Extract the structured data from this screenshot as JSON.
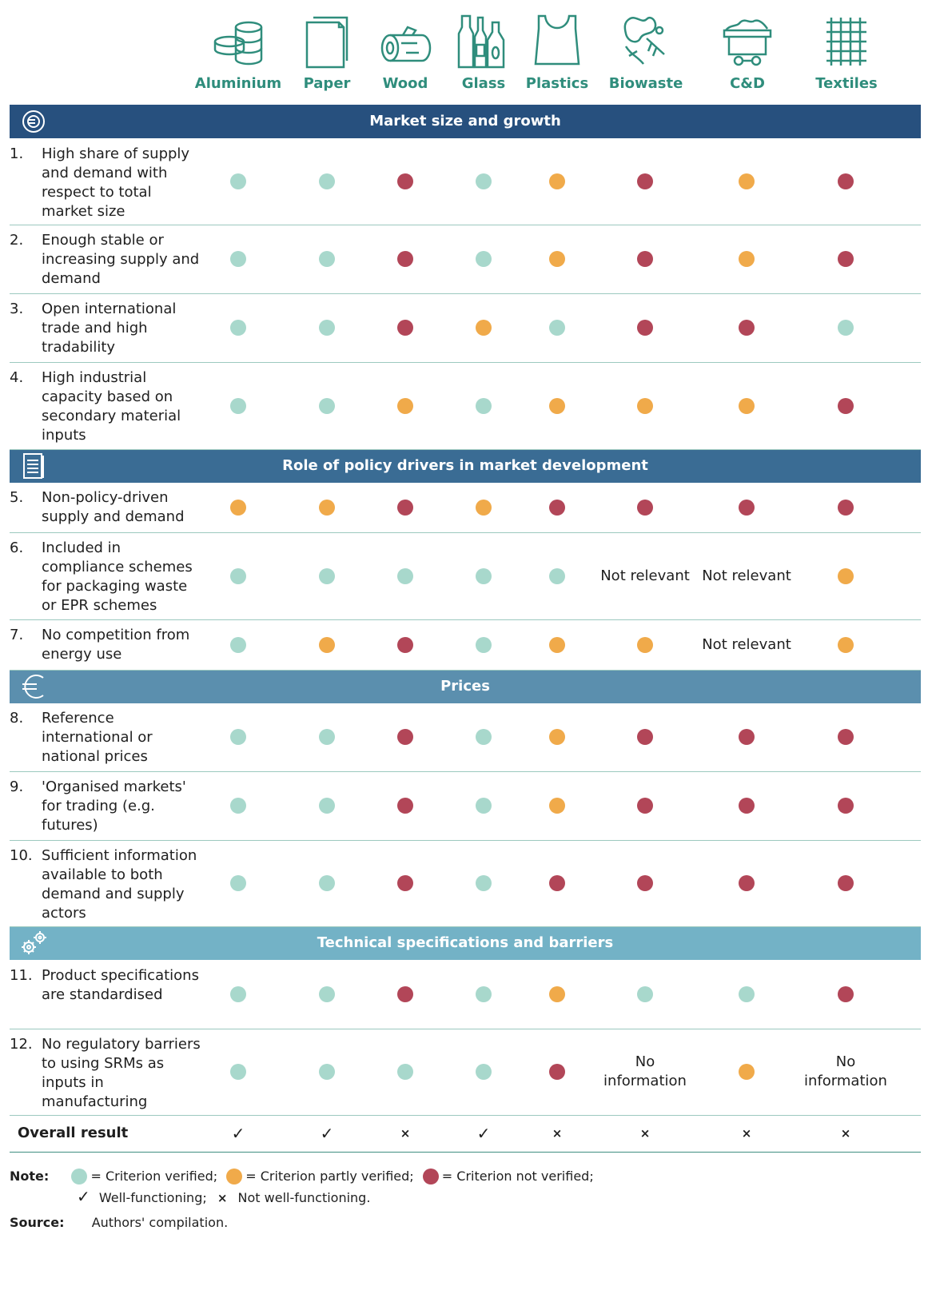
{
  "colors": {
    "verified": "#a8d8cc",
    "partly": "#f0aa4a",
    "not_verified": "#b24658",
    "section1": "#27507e",
    "section2": "#3a6c94",
    "section3": "#5b8fae",
    "section4": "#73b2c6"
  },
  "materials": [
    {
      "label": "Aluminium",
      "icon": "aluminium-cans-icon"
    },
    {
      "label": "Paper",
      "icon": "paper-sheets-icon"
    },
    {
      "label": "Wood",
      "icon": "wood-log-icon"
    },
    {
      "label": "Glass",
      "icon": "glass-bottles-icon"
    },
    {
      "label": "Plastics",
      "icon": "plastic-bag-icon"
    },
    {
      "label": "Biowaste",
      "icon": "biowaste-icon"
    },
    {
      "label": "C&D",
      "icon": "mine-cart-icon"
    },
    {
      "label": "Textiles",
      "icon": "woven-textile-icon"
    }
  ],
  "sections": [
    {
      "title": "Market size and growth",
      "icon": "euro-leaf-cycle-icon"
    },
    {
      "title": "Role of policy drivers in market development",
      "icon": "document-policy-icon"
    },
    {
      "title": "Prices",
      "icon": "euro-icon"
    },
    {
      "title": "Technical specifications and barriers",
      "icon": "gears-icon"
    }
  ],
  "criteria": [
    {
      "num": "1.",
      "text": "High share of supply and demand with respect to total market size",
      "values": [
        "v",
        "v",
        "n",
        "v",
        "p",
        "n",
        "p",
        "n"
      ]
    },
    {
      "num": "2.",
      "text": "Enough stable or increasing supply and demand",
      "values": [
        "v",
        "v",
        "n",
        "v",
        "p",
        "n",
        "p",
        "n"
      ]
    },
    {
      "num": "3.",
      "text": "Open international trade and high tradability",
      "values": [
        "v",
        "v",
        "n",
        "p",
        "v",
        "n",
        "n",
        "v"
      ]
    },
    {
      "num": "4.",
      "text": "High industrial capacity based on secondary material inputs",
      "values": [
        "v",
        "v",
        "p",
        "v",
        "p",
        "p",
        "p",
        "n"
      ]
    },
    {
      "num": "5.",
      "text": "Non-policy-driven supply and demand",
      "values": [
        "p",
        "p",
        "n",
        "p",
        "n",
        "n",
        "n",
        "n"
      ]
    },
    {
      "num": "6.",
      "text": "Included in compliance schemes for packaging waste or EPR schemes",
      "values": [
        "v",
        "v",
        "v",
        "v",
        "v",
        "Not relevant",
        "Not relevant",
        "p"
      ]
    },
    {
      "num": "7.",
      "text": "No competition from energy use",
      "values": [
        "v",
        "p",
        "n",
        "v",
        "p",
        "p",
        "Not relevant",
        "p"
      ]
    },
    {
      "num": "8.",
      "text": "Reference international or national prices",
      "values": [
        "v",
        "v",
        "n",
        "v",
        "p",
        "n",
        "n",
        "n"
      ]
    },
    {
      "num": "9.",
      "text": "'Organised markets' for trading (e.g. futures)",
      "values": [
        "v",
        "v",
        "n",
        "v",
        "p",
        "n",
        "n",
        "n"
      ]
    },
    {
      "num": "10.",
      "text": "Sufficient information available to both demand and supply actors",
      "values": [
        "v",
        "v",
        "n",
        "v",
        "n",
        "n",
        "n",
        "n"
      ]
    },
    {
      "num": "11.",
      "text": "Product specifications are standardised",
      "values": [
        "v",
        "v",
        "n",
        "v",
        "p",
        "v",
        "v",
        "n"
      ]
    },
    {
      "num": "12.",
      "text": "No regulatory barriers to using SRMs as inputs in manufacturing",
      "values": [
        "v",
        "v",
        "v",
        "v",
        "n",
        "No information",
        "p",
        "No information"
      ]
    }
  ],
  "overall": {
    "label": "Overall result",
    "values": [
      "✓",
      "✓",
      "×",
      "✓",
      "×",
      "×",
      "×",
      "×"
    ]
  },
  "note": {
    "label": "Note:",
    "verified": "= Criterion verified;",
    "partly": "= Criterion partly verified;",
    "not_verified": "= Criterion not verified;",
    "check_mark": "✓",
    "well": "Well-functioning;",
    "cross_mark": "×",
    "not_well": "Not well-functioning."
  },
  "source": {
    "label": "Source:",
    "text": "Authors' compilation."
  }
}
